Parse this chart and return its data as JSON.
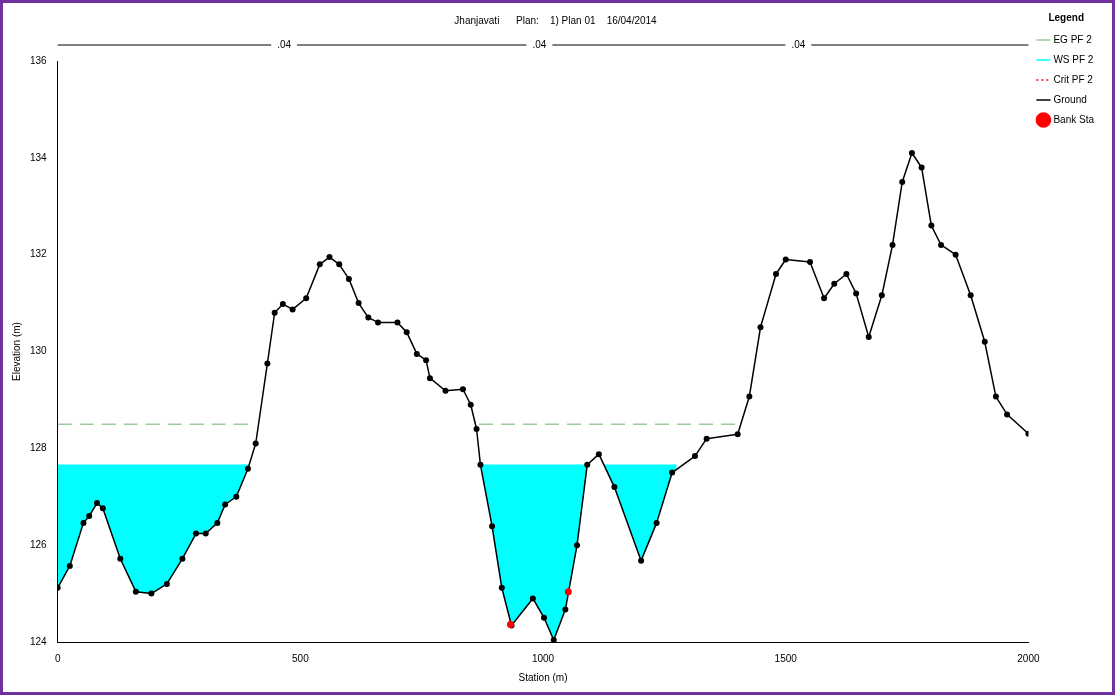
{
  "chart_data": {
    "type": "line",
    "title": "Jhanjavati      Plan:    1) Plan 01    16/04/2014",
    "xlabel": "Station (m)",
    "ylabel": "Elevation (m)",
    "legend_title": "Legend",
    "legend": "right",
    "xlim": [
      0,
      2000
    ],
    "xticks": [
      0,
      500,
      1000,
      1500,
      2000
    ],
    "ylim": [
      124,
      136
    ],
    "yticks": [
      124,
      126,
      128,
      130,
      132,
      134,
      136
    ],
    "annotations": [
      ".04",
      ".04",
      ".04"
    ],
    "series": [
      {
        "name": "EG PF 2",
        "type": "line",
        "color": "#99cc99",
        "line_style": "dashed",
        "x": [
          0,
          400,
          null,
          868,
          1410
        ],
        "values": [
          128.5,
          128.5,
          null,
          128.5,
          128.5
        ]
      },
      {
        "name": "WS PF 2",
        "type": "area",
        "color": "#00ffff",
        "x": [
          0,
          394,
          null,
          871,
          1275
        ],
        "values": [
          127.65,
          127.65,
          null,
          127.65,
          127.65
        ]
      },
      {
        "name": "Crit PF 2",
        "type": "line",
        "color": "#ff0000",
        "line_style": "dotted"
      },
      {
        "name": "Ground",
        "type": "line",
        "color": "#000000",
        "marker": "circle",
        "x": [
          0,
          25,
          53,
          65,
          81,
          93,
          129,
          161,
          193,
          225,
          257,
          285,
          305,
          329,
          345,
          368,
          392,
          408,
          432,
          447,
          464,
          484,
          512,
          540,
          560,
          580,
          600,
          620,
          640,
          660,
          700,
          719,
          740,
          759,
          767,
          799,
          835,
          851,
          863,
          871,
          895,
          915,
          935,
          979,
          1002,
          1022,
          1046,
          1070,
          1091,
          1115,
          1147,
          1202,
          1234,
          1266,
          1313,
          1337,
          1401,
          1425,
          1448,
          1480,
          1500,
          1550,
          1579,
          1600,
          1625,
          1645,
          1671,
          1698,
          1720,
          1740,
          1760,
          1780,
          1800,
          1820,
          1850,
          1881,
          1910,
          1933,
          1956,
          2000
        ],
        "values": [
          125.12,
          125.57,
          126.46,
          126.6,
          126.87,
          126.76,
          125.72,
          125.04,
          125.0,
          125.2,
          125.72,
          126.24,
          126.24,
          126.46,
          126.84,
          127.0,
          127.58,
          128.1,
          129.75,
          130.8,
          130.98,
          130.87,
          131.1,
          131.8,
          131.95,
          131.8,
          131.5,
          131.0,
          130.7,
          130.6,
          130.6,
          130.4,
          129.95,
          129.82,
          129.45,
          129.19,
          129.22,
          128.9,
          128.4,
          127.66,
          126.39,
          125.12,
          124.34,
          124.9,
          124.5,
          124.04,
          124.67,
          126.0,
          127.66,
          127.88,
          127.2,
          125.68,
          126.46,
          127.5,
          127.84,
          128.2,
          128.29,
          129.07,
          130.5,
          131.6,
          131.9,
          131.85,
          131.1,
          131.4,
          131.6,
          131.2,
          130.3,
          131.16,
          132.2,
          133.5,
          134.1,
          133.8,
          132.6,
          132.2,
          132.0,
          131.16,
          130.2,
          129.07,
          128.7,
          128.3
        ]
      },
      {
        "name": "Bank Sta",
        "type": "scatter",
        "color": "#ff0000",
        "marker": "circle",
        "x": [
          933,
          1052
        ],
        "values": [
          124.36,
          125.04
        ]
      }
    ]
  }
}
